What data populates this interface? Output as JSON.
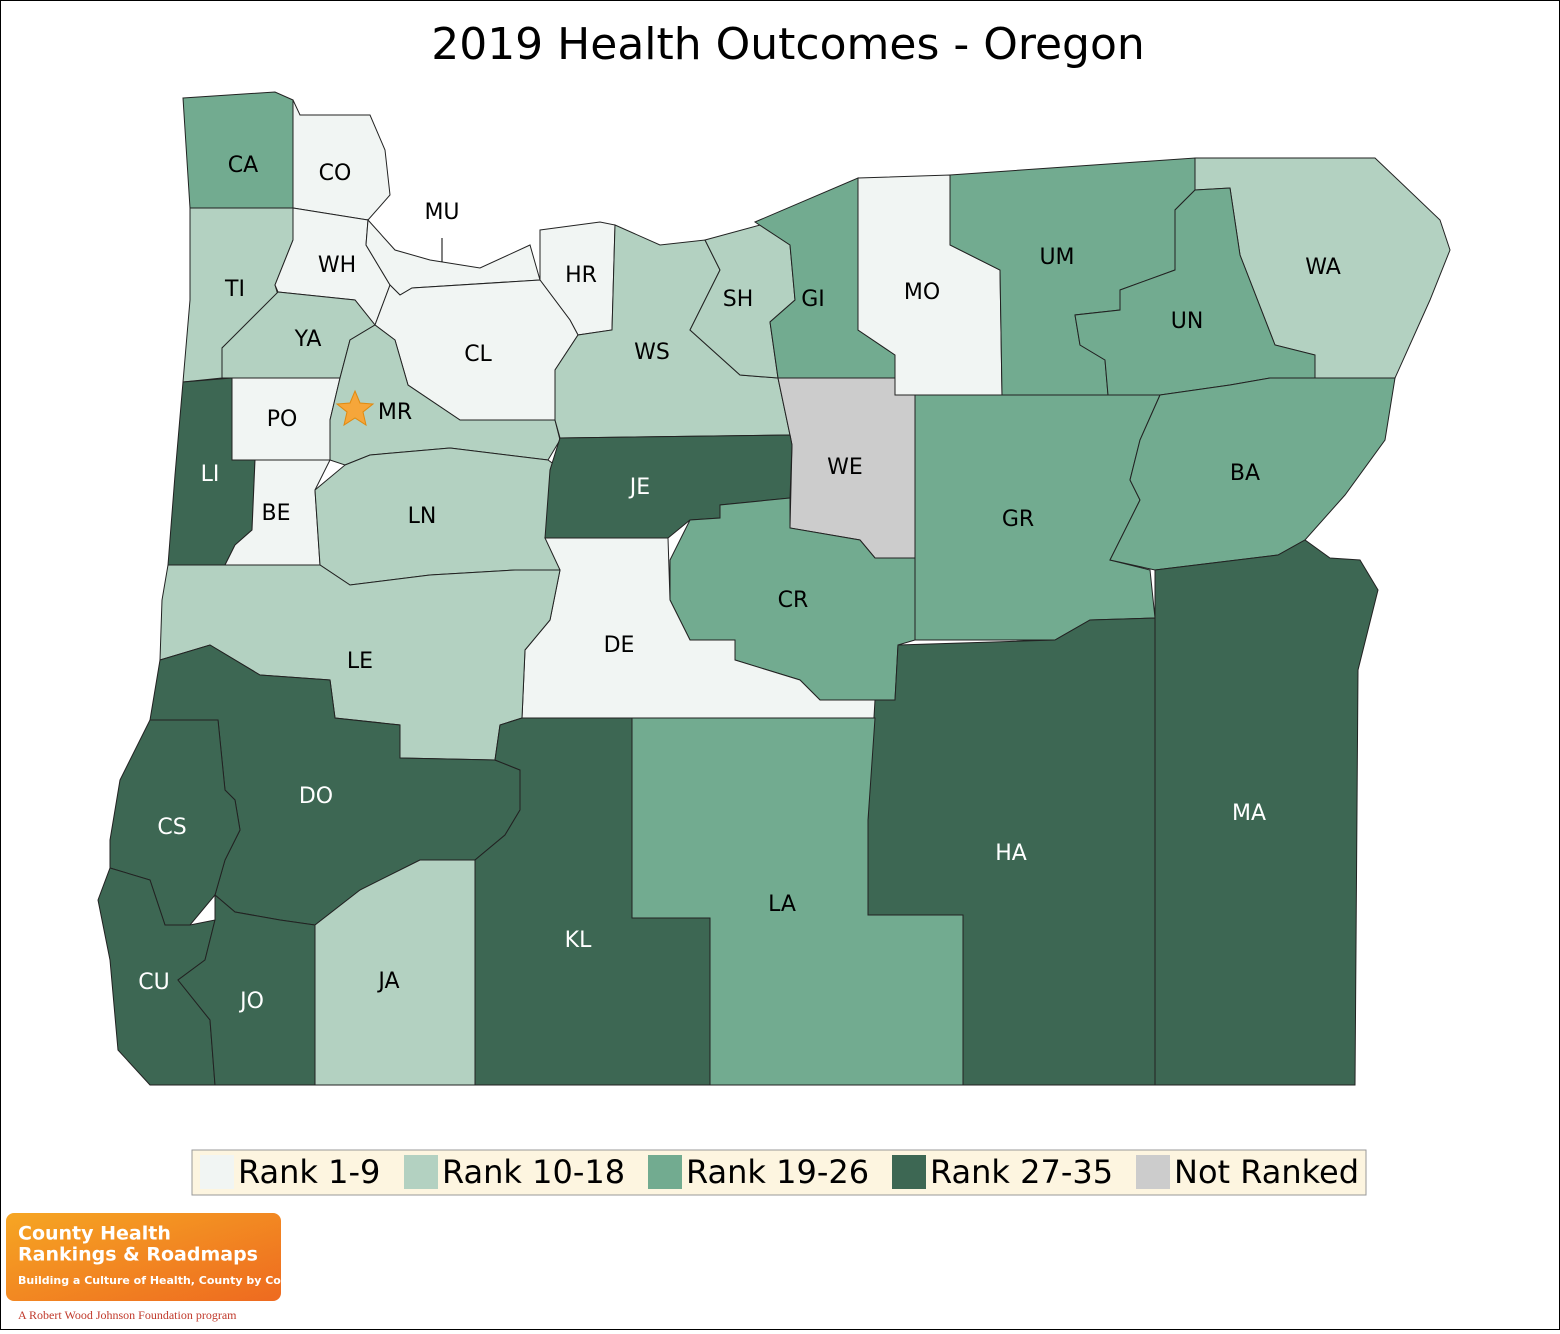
{
  "title": "2019 Health Outcomes - Oregon",
  "legend": [
    {
      "label": "Rank 1-9",
      "color": "#f1f5f3"
    },
    {
      "label": "Rank 10-18",
      "color": "#b3d1c1"
    },
    {
      "label": "Rank 19-26",
      "color": "#72ab90"
    },
    {
      "label": "Rank 27-35",
      "color": "#3d6753"
    },
    {
      "label": "Not Ranked",
      "color": "#cccccc"
    }
  ],
  "counties": [
    {
      "label": "CA",
      "color": "#72ab90"
    },
    {
      "label": "CO",
      "color": "#f1f5f3"
    },
    {
      "label": "TI",
      "color": "#b3d1c1"
    },
    {
      "label": "WH",
      "color": "#f1f5f3"
    },
    {
      "label": "MU",
      "color": "#f1f5f3"
    },
    {
      "label": "YA",
      "color": "#b3d1c1"
    },
    {
      "label": "HR",
      "color": "#f1f5f3"
    },
    {
      "label": "CL",
      "color": "#f1f5f3"
    },
    {
      "label": "PO",
      "color": "#f1f5f3"
    },
    {
      "label": "MR",
      "color": "#b3d1c1"
    },
    {
      "label": "LI",
      "color": "#3d6753"
    },
    {
      "label": "BE",
      "color": "#f1f5f3"
    },
    {
      "label": "LN",
      "color": "#b3d1c1"
    },
    {
      "label": "WS",
      "color": "#b3d1c1"
    },
    {
      "label": "SH",
      "color": "#b3d1c1"
    },
    {
      "label": "GI",
      "color": "#72ab90"
    },
    {
      "label": "MO",
      "color": "#f1f5f3"
    },
    {
      "label": "UM",
      "color": "#72ab90"
    },
    {
      "label": "WA",
      "color": "#b3d1c1"
    },
    {
      "label": "UN",
      "color": "#72ab90"
    },
    {
      "label": "WE",
      "color": "#cccccc"
    },
    {
      "label": "JE",
      "color": "#3d6753"
    },
    {
      "label": "GR",
      "color": "#72ab90"
    },
    {
      "label": "BA",
      "color": "#72ab90"
    },
    {
      "label": "CR",
      "color": "#72ab90"
    },
    {
      "label": "DE",
      "color": "#f1f5f3"
    },
    {
      "label": "LE",
      "color": "#b3d1c1"
    },
    {
      "label": "HA",
      "color": "#3d6753"
    },
    {
      "label": "MA",
      "color": "#3d6753"
    },
    {
      "label": "DO",
      "color": "#3d6753"
    },
    {
      "label": "CS",
      "color": "#3d6753"
    },
    {
      "label": "CU",
      "color": "#3d6753"
    },
    {
      "label": "JO",
      "color": "#3d6753"
    },
    {
      "label": "JA",
      "color": "#b3d1c1"
    },
    {
      "label": "KL",
      "color": "#3d6753"
    },
    {
      "label": "LA",
      "color": "#72ab90"
    }
  ],
  "logo": {
    "line1": "County Health",
    "line2": "Rankings & Roadmaps",
    "tagline": "Building a Culture of Health, County by County",
    "footer": "A Robert Wood Johnson Foundation program"
  }
}
